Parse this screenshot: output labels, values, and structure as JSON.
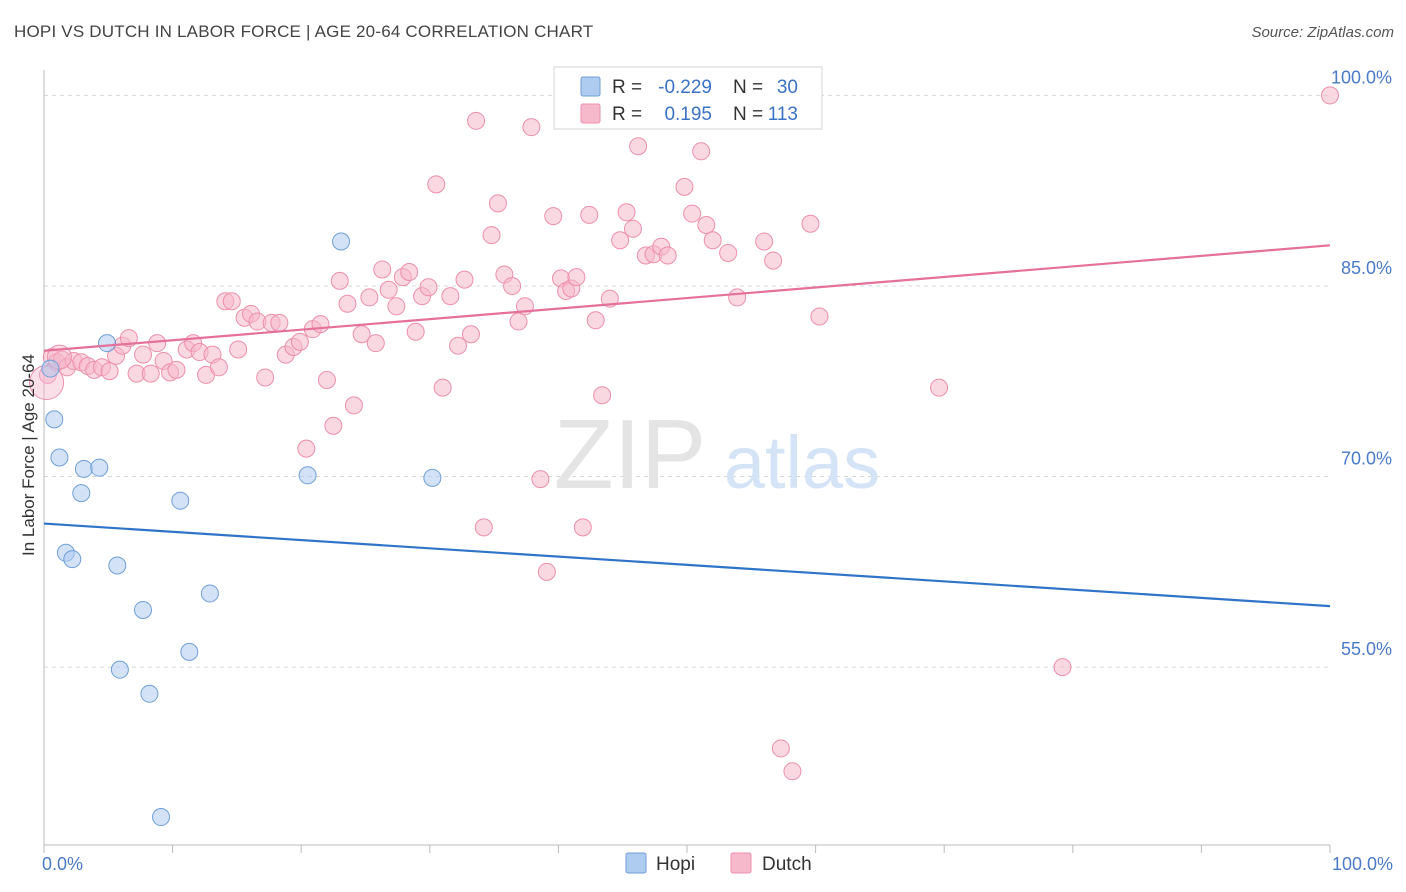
{
  "title": "HOPI VS DUTCH IN LABOR FORCE | AGE 20-64 CORRELATION CHART",
  "source": "Source: ZipAtlas.com",
  "watermark": {
    "zip": "ZIP",
    "atlas": "atlas"
  },
  "colors": {
    "hopi_fill": "#aecbf0",
    "hopi_stroke": "#6f9fd8",
    "hopi_line": "#2f74c8",
    "dutch_fill": "#f6b8cb",
    "dutch_stroke": "#ec8fab",
    "dutch_line": "#e57099",
    "axis_label": "#4a7ac8",
    "grid": "#d8d8d8"
  },
  "legend_top": {
    "rows": [
      {
        "r_label": "R =",
        "r_value": "-0.229",
        "n_label": "N =",
        "n_value": "30"
      },
      {
        "r_label": "R =",
        "r_value": "0.195",
        "n_label": "N =",
        "n_value": "113"
      }
    ]
  },
  "legend_bottom": [
    "Hopi",
    "Dutch"
  ],
  "chart_data": {
    "type": "scatter",
    "title": "HOPI VS DUTCH IN LABOR FORCE | AGE 20-64 CORRELATION CHART",
    "xlabel": "",
    "ylabel": "In Labor Force | Age 20-64",
    "xlim": [
      0,
      100
    ],
    "ylim": [
      41,
      102
    ],
    "x_tick_labels": [
      "0.0%",
      "100.0%"
    ],
    "y_ticks": [
      55,
      70,
      85,
      100
    ],
    "y_tick_labels": [
      "55.0%",
      "70.0%",
      "85.0%",
      "100.0%"
    ],
    "grid": true,
    "legend_position": "top-center",
    "series": [
      {
        "name": "Hopi",
        "color": "#aecbf0",
        "trend": {
          "x": [
            0,
            100
          ],
          "y": [
            66.3,
            59.8
          ]
        },
        "points": [
          [
            0.5,
            78.5
          ],
          [
            0.8,
            74.5
          ],
          [
            1.2,
            71.5
          ],
          [
            1.7,
            64.0
          ],
          [
            2.2,
            63.5
          ],
          [
            2.9,
            68.7
          ],
          [
            3.1,
            70.6
          ],
          [
            4.3,
            70.7
          ],
          [
            4.9,
            80.5
          ],
          [
            5.7,
            63.0
          ],
          [
            5.9,
            54.8
          ],
          [
            7.7,
            59.5
          ],
          [
            8.2,
            52.9
          ],
          [
            9.1,
            43.2
          ],
          [
            10.6,
            68.1
          ],
          [
            11.3,
            56.2
          ],
          [
            12.9,
            60.8
          ],
          [
            20.5,
            70.1
          ],
          [
            23.1,
            88.5
          ],
          [
            30.2,
            69.9
          ],
          [
            56.2,
            100.0
          ],
          [
            56.6,
            99.8
          ],
          [
            56.9,
            99.9
          ],
          [
            56.4,
            99.9
          ],
          [
            56.7,
            100.0
          ],
          [
            56.5,
            100.1
          ],
          [
            56.8,
            99.8
          ],
          [
            56.3,
            100.0
          ],
          [
            56.6,
            100.1
          ],
          [
            56.9,
            100.0
          ]
        ]
      },
      {
        "name": "Dutch",
        "color": "#f6b8cb",
        "trend": {
          "x": [
            0,
            100
          ],
          "y": [
            79.9,
            88.2
          ]
        },
        "points": [
          [
            0.3,
            78.0
          ],
          [
            0.6,
            79.4
          ],
          [
            1.0,
            79.0
          ],
          [
            1.4,
            79.2
          ],
          [
            1.8,
            78.6
          ],
          [
            2.3,
            79.1
          ],
          [
            2.9,
            79.0
          ],
          [
            3.4,
            78.7
          ],
          [
            3.9,
            78.4
          ],
          [
            4.5,
            78.6
          ],
          [
            5.1,
            78.3
          ],
          [
            5.6,
            79.5
          ],
          [
            6.1,
            80.3
          ],
          [
            6.6,
            80.9
          ],
          [
            7.2,
            78.1
          ],
          [
            7.7,
            79.6
          ],
          [
            8.3,
            78.1
          ],
          [
            8.8,
            80.5
          ],
          [
            9.3,
            79.1
          ],
          [
            9.8,
            78.2
          ],
          [
            10.3,
            78.4
          ],
          [
            11.1,
            80.0
          ],
          [
            11.6,
            80.5
          ],
          [
            12.1,
            79.8
          ],
          [
            12.6,
            78.0
          ],
          [
            13.1,
            79.6
          ],
          [
            13.6,
            78.6
          ],
          [
            14.1,
            83.8
          ],
          [
            14.6,
            83.8
          ],
          [
            15.1,
            80.0
          ],
          [
            15.6,
            82.5
          ],
          [
            16.1,
            82.8
          ],
          [
            16.6,
            82.2
          ],
          [
            17.2,
            77.8
          ],
          [
            17.7,
            82.1
          ],
          [
            18.3,
            82.1
          ],
          [
            18.8,
            79.6
          ],
          [
            19.4,
            80.2
          ],
          [
            19.9,
            80.6
          ],
          [
            20.4,
            72.2
          ],
          [
            20.9,
            81.6
          ],
          [
            21.5,
            82.0
          ],
          [
            22.0,
            77.6
          ],
          [
            22.5,
            74.0
          ],
          [
            23.0,
            85.4
          ],
          [
            23.6,
            83.6
          ],
          [
            24.1,
            75.6
          ],
          [
            24.7,
            81.2
          ],
          [
            25.3,
            84.1
          ],
          [
            25.8,
            80.5
          ],
          [
            26.3,
            86.3
          ],
          [
            26.8,
            84.7
          ],
          [
            27.4,
            83.4
          ],
          [
            27.9,
            85.7
          ],
          [
            28.4,
            86.1
          ],
          [
            28.9,
            81.4
          ],
          [
            29.4,
            84.2
          ],
          [
            29.9,
            84.9
          ],
          [
            30.5,
            93.0
          ],
          [
            31.0,
            77.0
          ],
          [
            31.6,
            84.2
          ],
          [
            32.2,
            80.3
          ],
          [
            32.7,
            85.5
          ],
          [
            33.2,
            81.2
          ],
          [
            33.6,
            98.0
          ],
          [
            34.2,
            66.0
          ],
          [
            34.8,
            89.0
          ],
          [
            35.3,
            91.5
          ],
          [
            35.8,
            85.9
          ],
          [
            36.4,
            85.0
          ],
          [
            36.9,
            82.2
          ],
          [
            37.4,
            83.4
          ],
          [
            37.9,
            97.5
          ],
          [
            38.6,
            69.8
          ],
          [
            39.1,
            62.5
          ],
          [
            39.6,
            90.5
          ],
          [
            40.2,
            85.6
          ],
          [
            40.6,
            84.6
          ],
          [
            41.0,
            84.8
          ],
          [
            41.4,
            85.7
          ],
          [
            41.9,
            66.0
          ],
          [
            42.4,
            90.6
          ],
          [
            42.9,
            82.3
          ],
          [
            43.4,
            76.4
          ],
          [
            44.0,
            84.0
          ],
          [
            44.8,
            88.6
          ],
          [
            45.3,
            90.8
          ],
          [
            45.8,
            89.5
          ],
          [
            46.2,
            96.0
          ],
          [
            46.8,
            87.4
          ],
          [
            47.4,
            87.5
          ],
          [
            48.0,
            88.1
          ],
          [
            48.5,
            87.4
          ],
          [
            49.1,
            100.0
          ],
          [
            49.8,
            92.8
          ],
          [
            50.4,
            90.7
          ],
          [
            51.1,
            95.6
          ],
          [
            51.5,
            89.8
          ],
          [
            52.0,
            88.6
          ],
          [
            53.2,
            87.6
          ],
          [
            53.9,
            84.1
          ],
          [
            56.0,
            88.5
          ],
          [
            56.7,
            87.0
          ],
          [
            57.3,
            48.6
          ],
          [
            58.2,
            46.8
          ],
          [
            58.9,
            100.0
          ],
          [
            59.6,
            89.9
          ],
          [
            60.3,
            82.6
          ],
          [
            69.6,
            77.0
          ],
          [
            79.2,
            55.0
          ],
          [
            100.0,
            100.0
          ]
        ]
      }
    ]
  }
}
